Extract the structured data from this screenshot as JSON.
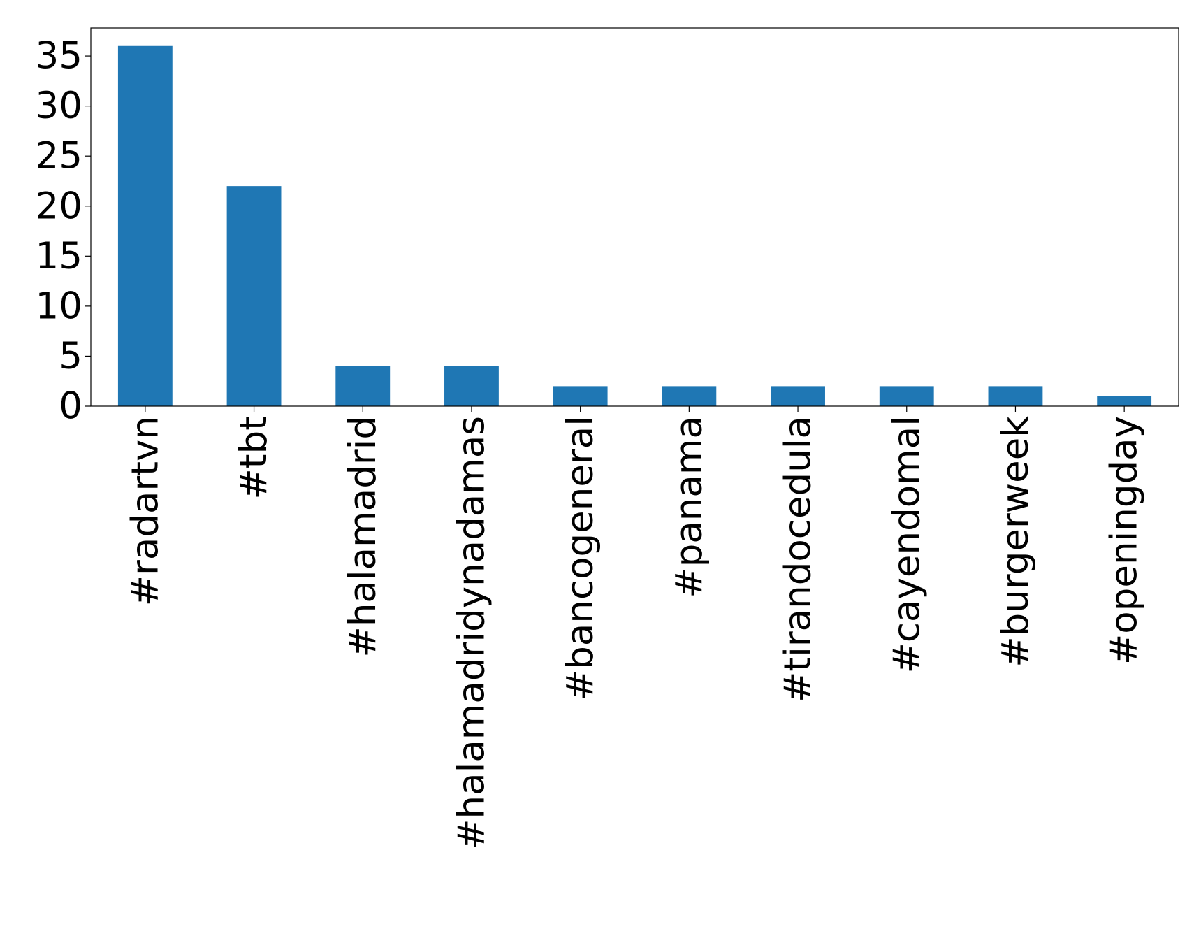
{
  "chart_data": {
    "type": "bar",
    "categories": [
      "#radartvn",
      "#tbt",
      "#halamadrid",
      "#halamadridynadamas",
      "#bancogeneral",
      "#panama",
      "#tirandocedula",
      "#cayendomal",
      "#burgerweek",
      "#openingday"
    ],
    "values": [
      36,
      22,
      4,
      4,
      2,
      2,
      2,
      2,
      2,
      1
    ],
    "color": "#1f77b4",
    "ylim": [
      0,
      37.8
    ],
    "yticks": [
      0,
      5,
      10,
      15,
      20,
      25,
      30,
      35
    ],
    "grid": false
  }
}
